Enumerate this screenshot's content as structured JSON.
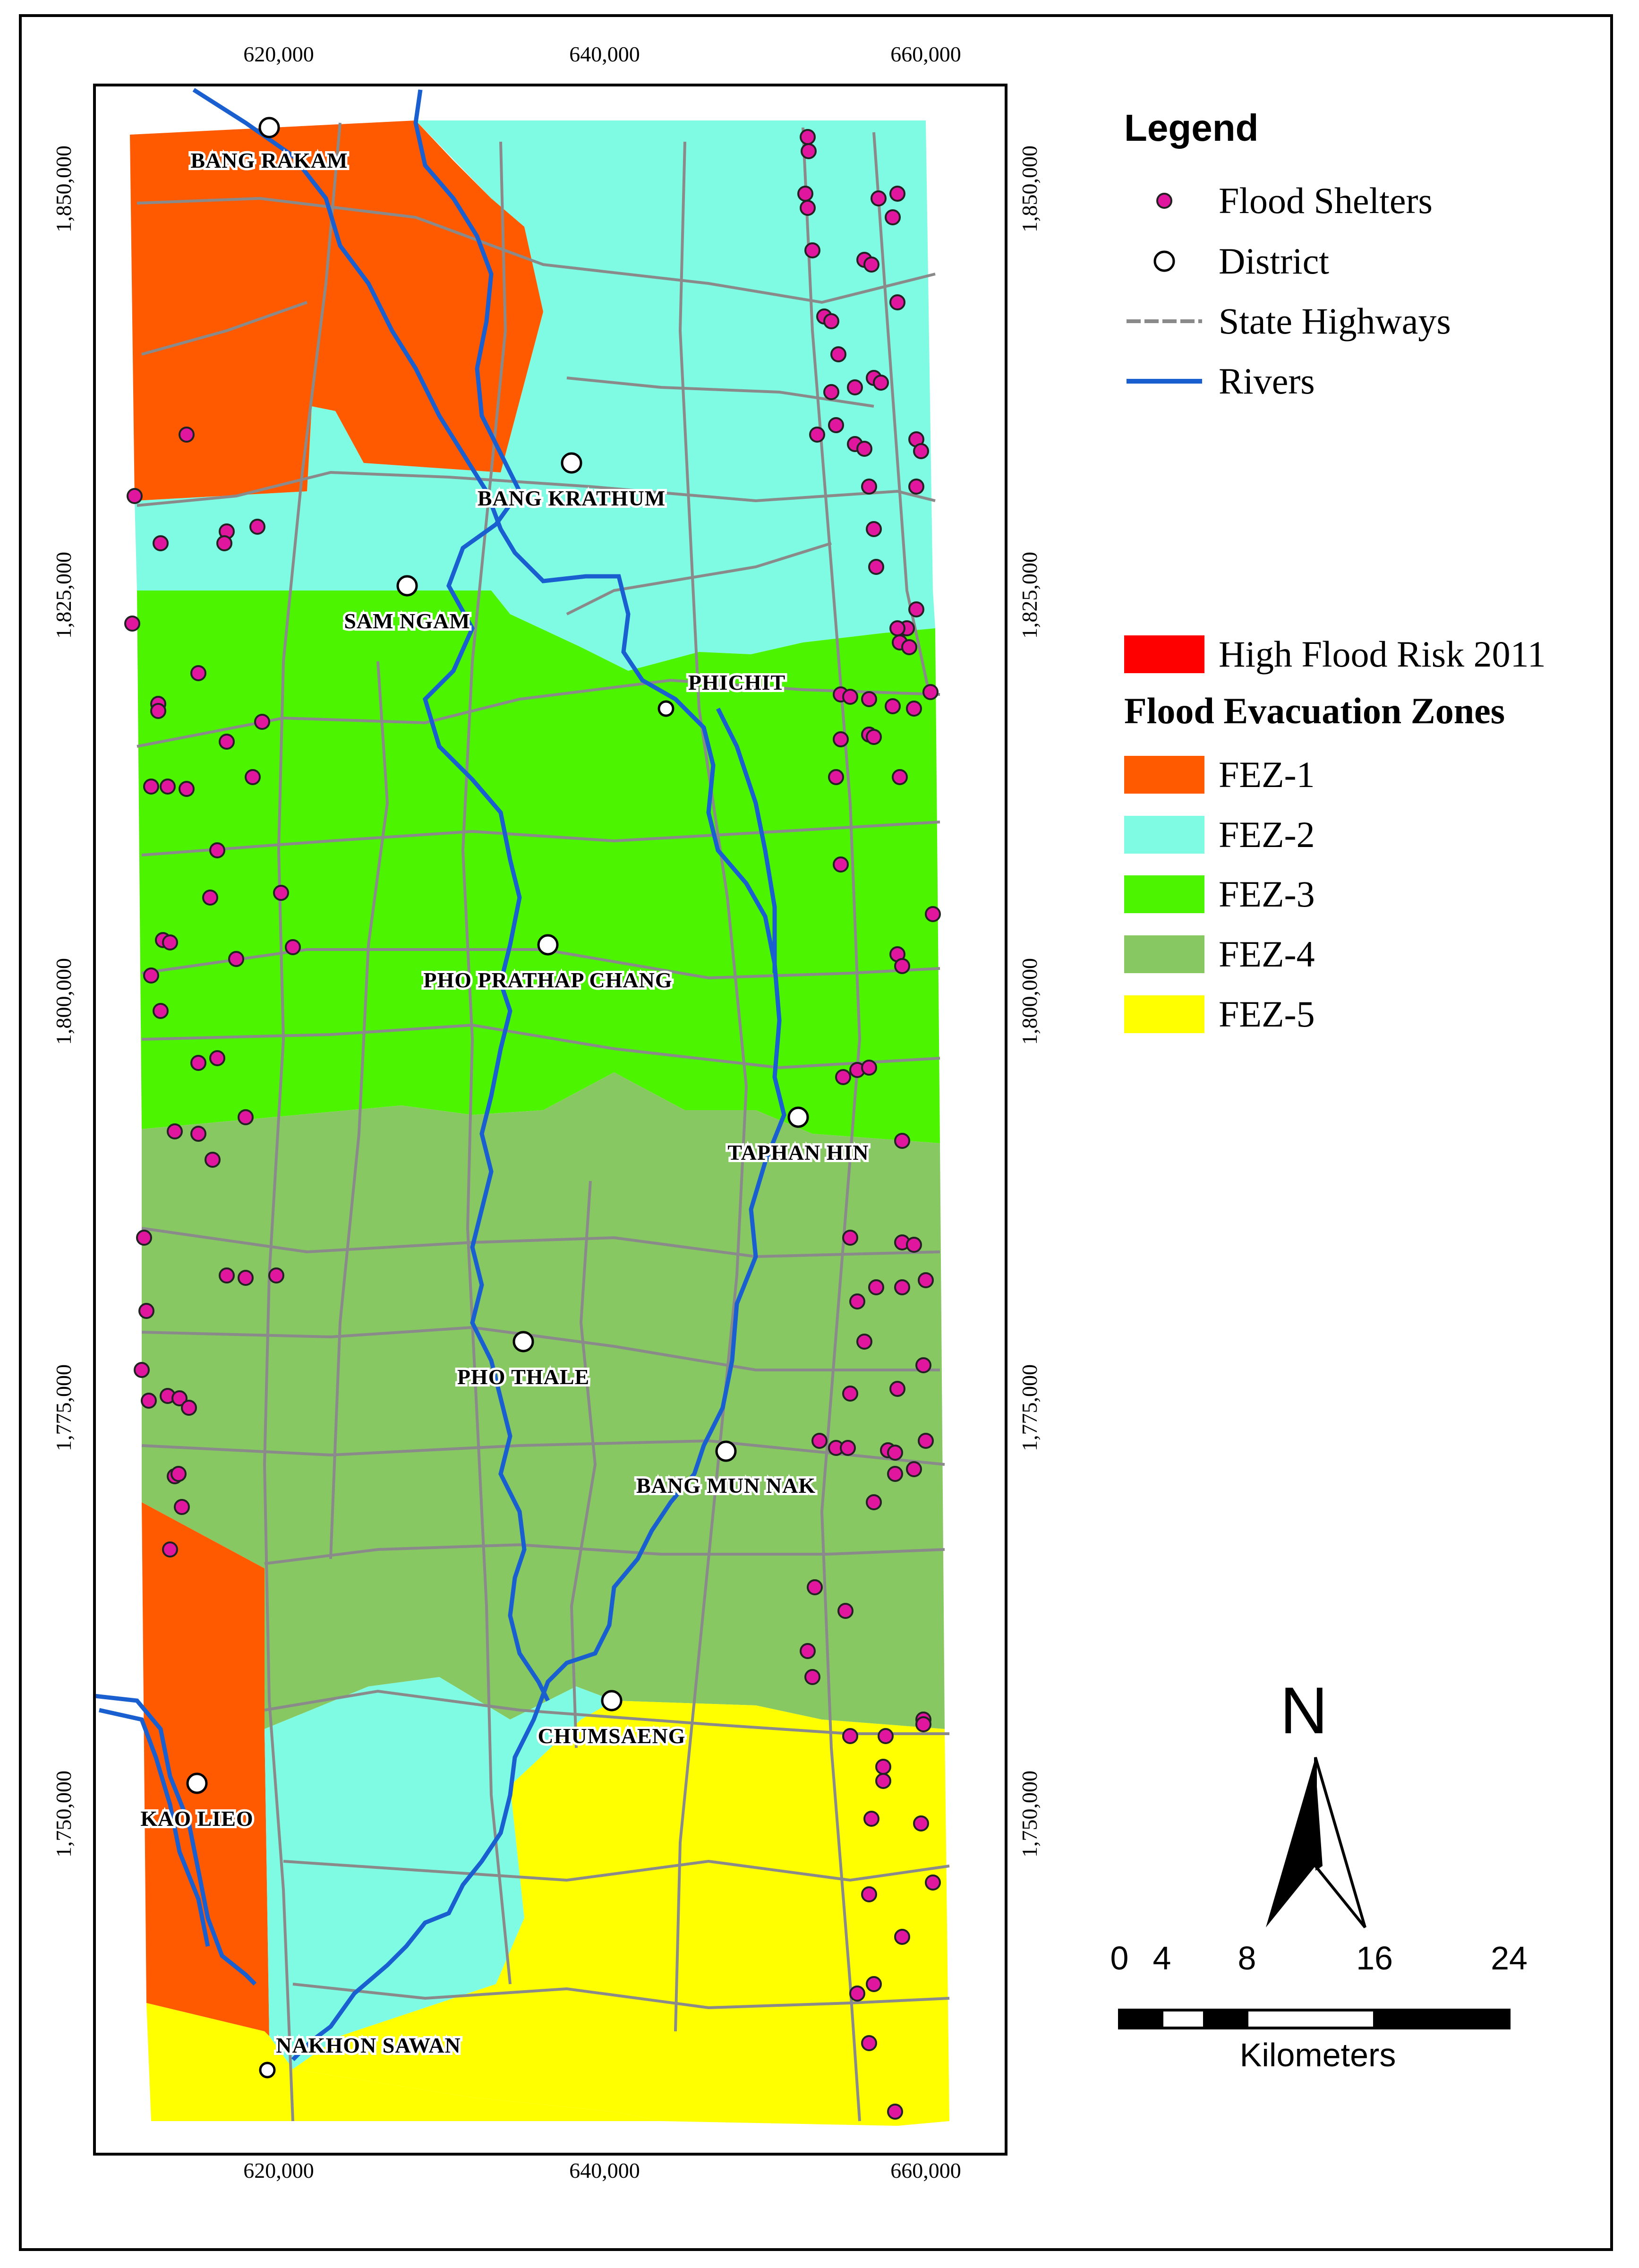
{
  "axes": {
    "x_ticks": [
      "620,000",
      "640,000",
      "660,000"
    ],
    "y_ticks": [
      "1,850,000",
      "1,825,000",
      "1,800,000",
      "1,775,000",
      "1,750,000"
    ]
  },
  "legend": {
    "title": "Legend",
    "items": [
      {
        "label": "Flood Shelters",
        "symbol": "magenta-dot-icon",
        "color": "#e0169f"
      },
      {
        "label": "District",
        "symbol": "white-circle-icon",
        "color": "#ffffff"
      },
      {
        "label": "State Highways",
        "symbol": "dashed-gray-line-icon",
        "color": "#8a8a8a"
      },
      {
        "label": "Rivers",
        "symbol": "blue-line-icon",
        "color": "#1a5fcf"
      }
    ],
    "risk_label": "High Flood Risk 2011",
    "risk_color": "#ff0000",
    "zones_title": "Flood Evacuation Zones",
    "zones": [
      {
        "label": "FEZ-1",
        "color": "#ff5a00"
      },
      {
        "label": "FEZ-2",
        "color": "#7ffbe3"
      },
      {
        "label": "FEZ-3",
        "color": "#4cf400"
      },
      {
        "label": "FEZ-4",
        "color": "#88c863"
      },
      {
        "label": "FEZ-5",
        "color": "#ffff00"
      }
    ]
  },
  "districts": [
    {
      "name": "BANG RAKAM"
    },
    {
      "name": "BANG KRATHUM"
    },
    {
      "name": "SAM NGAM"
    },
    {
      "name": "PHICHIT"
    },
    {
      "name": "PHO PRATHAP CHANG"
    },
    {
      "name": "TAPHAN HIN"
    },
    {
      "name": "PHO THALE"
    },
    {
      "name": "BANG MUN NAK"
    },
    {
      "name": "CHUMSAENG"
    },
    {
      "name": "KAO LIEO"
    },
    {
      "name": "NAKHON SAWAN"
    }
  ],
  "north_arrow": {
    "letter": "N"
  },
  "scale_bar": {
    "ticks": [
      "0",
      "4",
      "8",
      "16",
      "24"
    ],
    "unit": "Kilometers"
  }
}
